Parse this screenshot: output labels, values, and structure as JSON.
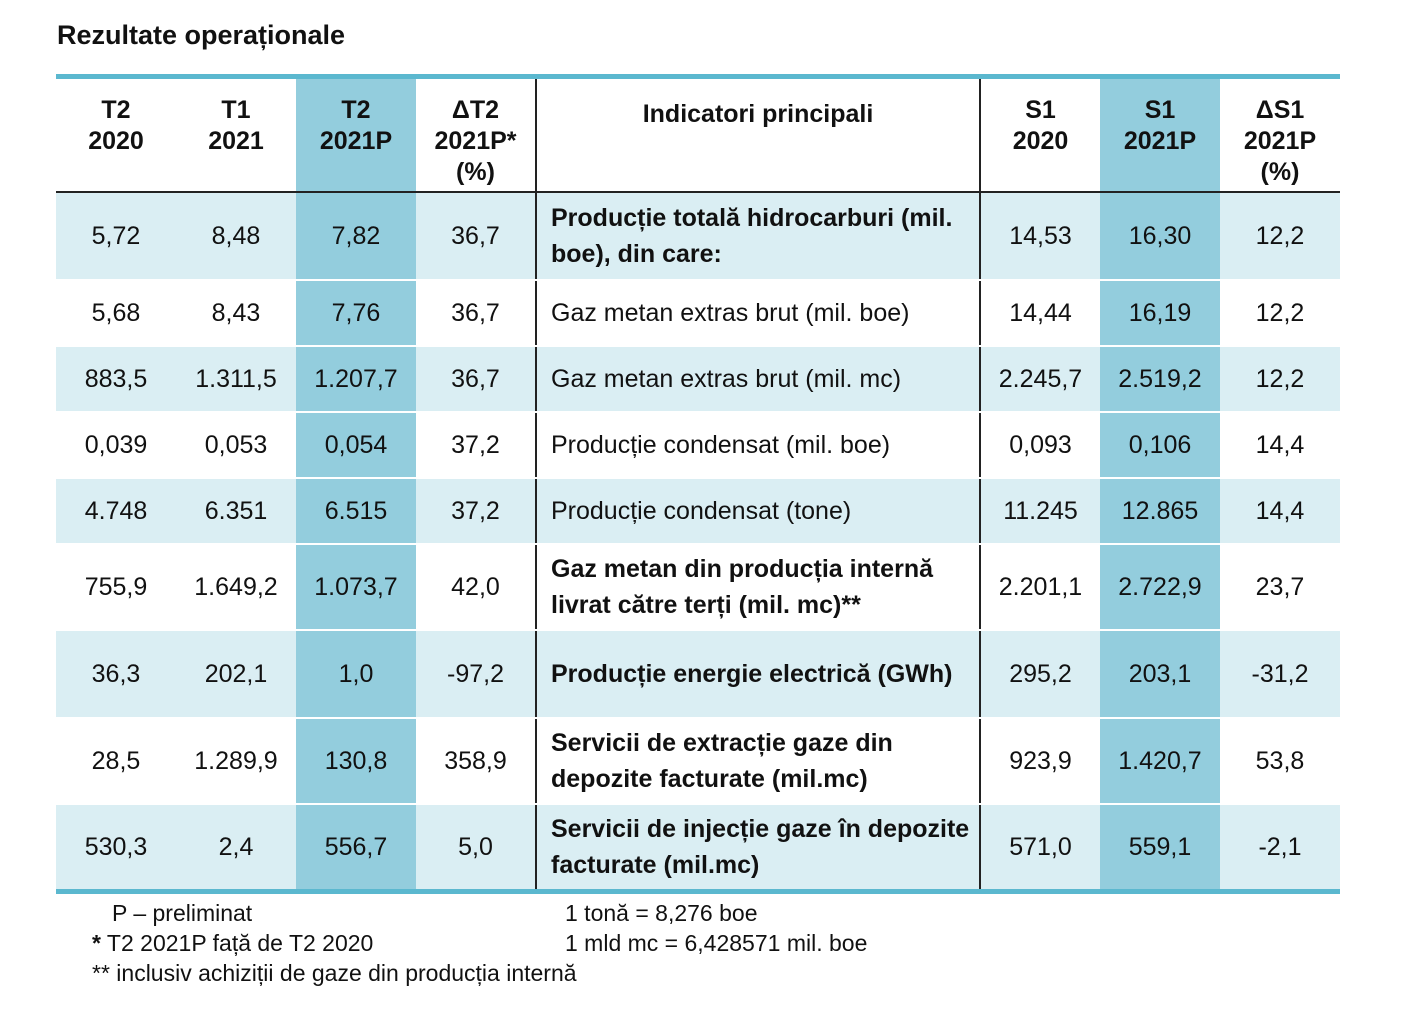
{
  "title": "Rezultate operaționale",
  "headers": [
    [
      "T2",
      "2020"
    ],
    [
      "T1",
      "2021"
    ],
    [
      "T2",
      "2021P"
    ],
    [
      "ΔT2",
      "2021P*",
      "(%)"
    ],
    [
      "Indicatori principali"
    ],
    [
      "S1",
      "2020"
    ],
    [
      "S1",
      "2021P"
    ],
    [
      "ΔS1",
      "2021P",
      "(%)"
    ]
  ],
  "rows": [
    {
      "indicator": "Producție totală hidrocarburi (mil. boe), din care:",
      "bold": true,
      "values": [
        "5,72",
        "8,48",
        "7,82",
        "36,7",
        "14,53",
        "16,30",
        "12,2"
      ]
    },
    {
      "indicator": "Gaz metan extras brut (mil. boe)",
      "bold": false,
      "values": [
        "5,68",
        "8,43",
        "7,76",
        "36,7",
        "14,44",
        "16,19",
        "12,2"
      ]
    },
    {
      "indicator": "Gaz metan extras brut (mil. mc)",
      "bold": false,
      "values": [
        "883,5",
        "1.311,5",
        "1.207,7",
        "36,7",
        "2.245,7",
        "2.519,2",
        "12,2"
      ]
    },
    {
      "indicator": "Producție condensat (mil. boe)",
      "bold": false,
      "values": [
        "0,039",
        "0,053",
        "0,054",
        "37,2",
        "0,093",
        "0,106",
        "14,4"
      ]
    },
    {
      "indicator": "Producție condensat (tone)",
      "bold": false,
      "values": [
        "4.748",
        "6.351",
        "6.515",
        "37,2",
        "11.245",
        "12.865",
        "14,4"
      ]
    },
    {
      "indicator": "Gaz metan din producția internă livrat către terți (mil. mc)**",
      "bold": true,
      "values": [
        "755,9",
        "1.649,2",
        "1.073,7",
        "42,0",
        "2.201,1",
        "2.722,9",
        "23,7"
      ]
    },
    {
      "indicator": "Producție energie electrică (GWh)",
      "bold": true,
      "values": [
        "36,3",
        "202,1",
        "1,0",
        "-97,2",
        "295,2",
        "203,1",
        "-31,2"
      ]
    },
    {
      "indicator": "Servicii de extracție gaze din depozite facturate (mil.mc)",
      "bold": true,
      "values": [
        "28,5",
        "1.289,9",
        "130,8",
        "358,9",
        "923,9",
        "1.420,7",
        "53,8"
      ]
    },
    {
      "indicator": "Servicii de injecție gaze în depozite facturate (mil.mc)",
      "bold": true,
      "values": [
        "530,3",
        "2,4",
        "556,7",
        "5,0",
        "571,0",
        "559,1",
        "-2,1"
      ]
    }
  ],
  "notes": {
    "preliminary": "P – preliminat",
    "star_mark": "*",
    "star_text": " T2 2021P față de T2 2020",
    "double_star": "** inclusiv achiziții de gaze din producția internă",
    "conv_tonne": "1 tonă = 8,276 boe",
    "conv_mld": "1 mld mc = 6,428571 mil. boe"
  },
  "colors": {
    "highlight_column": "#93cddd",
    "row_shade": "#daeef3",
    "rule": "#5bb8cf"
  }
}
